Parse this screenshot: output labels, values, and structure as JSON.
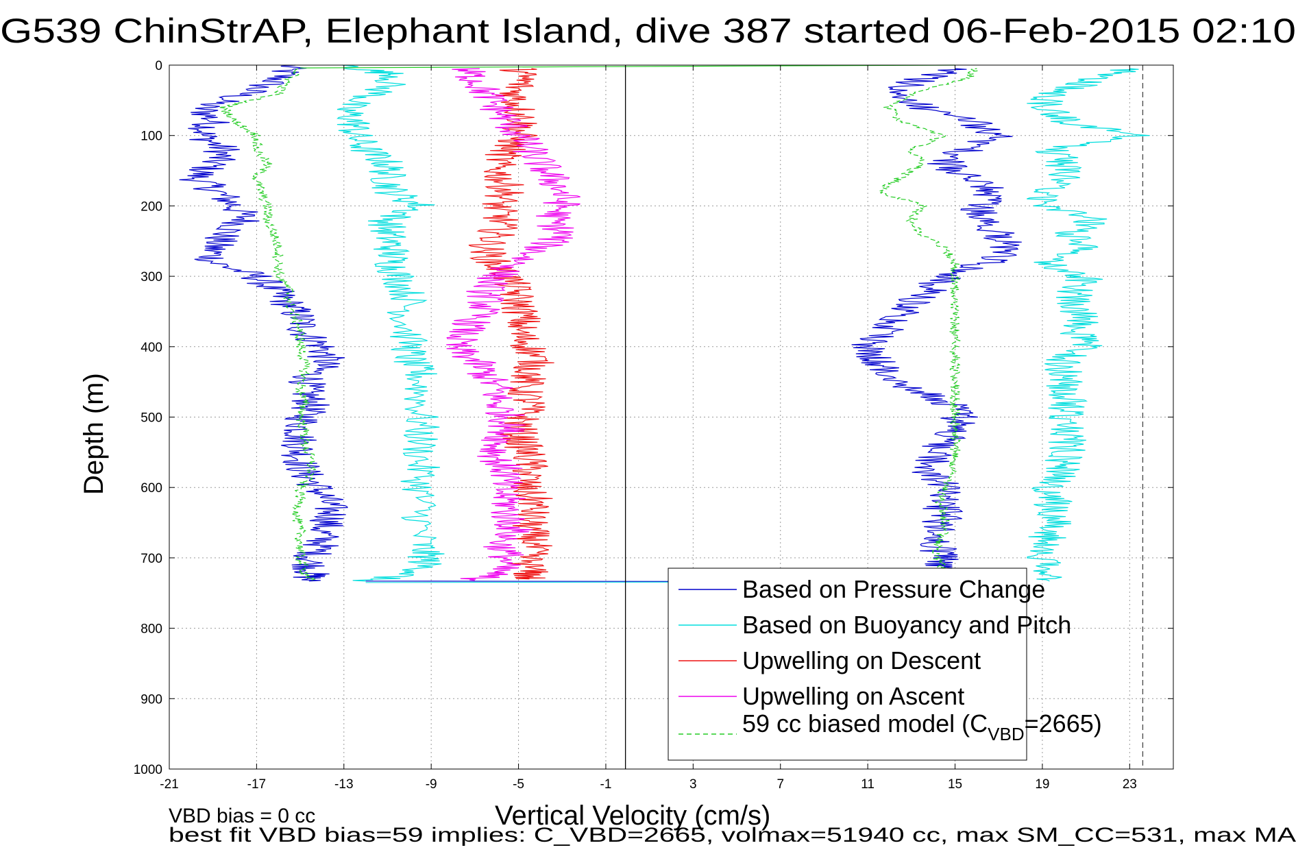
{
  "chart_data": {
    "type": "line",
    "title": "G539 ChinStrAP, Elephant Island, dive 387 started 06-Feb-2015 02:10",
    "xlabel": "Vertical Velocity (cm/s)",
    "ylabel": "Depth (m)",
    "xlim": [
      -21,
      25
    ],
    "ylim": [
      0,
      1000
    ],
    "y_reversed": true,
    "x_ticks": [
      -21,
      -17,
      -13,
      -9,
      -5,
      -1,
      3,
      7,
      11,
      15,
      19,
      23
    ],
    "y_ticks": [
      0,
      100,
      200,
      300,
      400,
      500,
      600,
      700,
      800,
      900,
      1000
    ],
    "grid": true,
    "legend_position": "bottom-right",
    "reference_lines": [
      {
        "x": -0.1,
        "style": "solid",
        "color": "#000000"
      },
      {
        "x": 23.6,
        "style": "dashed",
        "color": "#444444"
      }
    ],
    "series": [
      {
        "name": "Based on Pressure Change",
        "color": "#0000cc",
        "style": "solid",
        "segments": [
          {
            "depth": [
              0,
              20,
              40,
              60,
              80,
              100,
              120,
              140,
              160,
              180,
              200,
              220,
              240,
              260,
              280,
              300,
              320,
              340,
              360,
              380,
              400,
              420,
              440,
              460,
              480,
              500,
              520,
              540,
              560,
              580,
              600,
              620,
              640,
              660,
              680,
              700,
              720,
              733
            ],
            "velocity": [
              -15.5,
              -16.0,
              -17.5,
              -19.5,
              -19.0,
              -19.5,
              -18.5,
              -19.0,
              -19.8,
              -18.8,
              -18.0,
              -17.5,
              -18.5,
              -19.0,
              -19.0,
              -17.0,
              -16.2,
              -15.5,
              -15.0,
              -14.8,
              -14.0,
              -13.8,
              -14.5,
              -14.8,
              -14.5,
              -14.8,
              -15.0,
              -15.0,
              -15.0,
              -14.8,
              -14.2,
              -13.8,
              -13.5,
              -14.0,
              -14.0,
              -14.5,
              -14.5,
              -14.6
            ]
          },
          {
            "depth": [
              733,
              715,
              700,
              680,
              660,
              640,
              620,
              600,
              580,
              560,
              540,
              520,
              500,
              480,
              460,
              440,
              420,
              400,
              380,
              360,
              340,
              320,
              300,
              280,
              260,
              240,
              220,
              200,
              180,
              160,
              140,
              120,
              100,
              80,
              60,
              40,
              20,
              5
            ],
            "velocity": [
              14.0,
              14.2,
              14.5,
              14.0,
              14.2,
              14.5,
              14.3,
              14.5,
              13.8,
              14.0,
              14.2,
              15.0,
              15.2,
              14.8,
              13.2,
              11.8,
              11.5,
              11.0,
              11.8,
              12.5,
              13.0,
              13.8,
              14.5,
              16.5,
              17.5,
              17.0,
              16.5,
              16.0,
              16.8,
              15.5,
              14.5,
              15.5,
              17.0,
              15.8,
              13.5,
              12.0,
              13.5,
              15.0
            ]
          }
        ]
      },
      {
        "name": "Based on Buoyancy and Pitch",
        "color": "#00dddd",
        "style": "solid",
        "segments": [
          {
            "depth": [
              0,
              15,
              40,
              60,
              80,
              100,
              120,
              140,
              160,
              180,
              200,
              220,
              240,
              260,
              280,
              300,
              330,
              360,
              400,
              420,
              440,
              480,
              520,
              560,
              600,
              640,
              680,
              700,
              720,
              733
            ],
            "velocity": [
              -13.0,
              -10.5,
              -11.5,
              -13.0,
              -12.5,
              -12.5,
              -12.0,
              -11.0,
              -11.0,
              -10.8,
              -9.5,
              -11.0,
              -11.0,
              -10.8,
              -10.8,
              -10.5,
              -10.0,
              -10.2,
              -10.0,
              -10.0,
              -9.5,
              -9.5,
              -9.5,
              -9.5,
              -9.5,
              -9.5,
              -9.5,
              -9.2,
              -9.5,
              -12.0
            ]
          },
          {
            "depth": [
              733,
              720,
              700,
              680,
              660,
              640,
              620,
              600,
              580,
              560,
              540,
              520,
              500,
              480,
              460,
              440,
              420,
              400,
              380,
              360,
              340,
              320,
              300,
              280,
              260,
              240,
              220,
              200,
              180,
              160,
              140,
              120,
              100,
              80,
              60,
              40,
              20,
              5
            ],
            "velocity": [
              19.0,
              19.0,
              19.2,
              19.0,
              19.5,
              19.5,
              19.5,
              19.3,
              20.0,
              20.0,
              20.2,
              20.0,
              20.0,
              20.2,
              20.0,
              20.0,
              20.0,
              21.0,
              20.5,
              20.8,
              20.5,
              20.5,
              21.0,
              19.0,
              21.5,
              20.0,
              21.5,
              19.0,
              19.2,
              20.0,
              20.0,
              19.5,
              23.5,
              20.0,
              19.0,
              19.5,
              21.5,
              23.0
            ]
          }
        ]
      },
      {
        "name": "Upwelling on Descent",
        "color": "#ee1111",
        "style": "solid",
        "segments": [
          {
            "depth": [
              5,
              20,
              40,
              60,
              80,
              100,
              120,
              140,
              160,
              180,
              200,
              220,
              240,
              260,
              280,
              300,
              320,
              340,
              360,
              380,
              400,
              420,
              440,
              460,
              480,
              500,
              520,
              540,
              560,
              580,
              600,
              620,
              640,
              660,
              680,
              700,
              720,
              730
            ],
            "velocity": [
              -5.0,
              -4.8,
              -5.2,
              -5.0,
              -4.8,
              -5.0,
              -5.5,
              -6.0,
              -5.8,
              -5.5,
              -6.0,
              -5.8,
              -6.0,
              -6.5,
              -6.2,
              -5.5,
              -5.2,
              -5.0,
              -4.8,
              -5.0,
              -4.5,
              -4.2,
              -4.5,
              -4.8,
              -4.5,
              -4.8,
              -5.0,
              -4.8,
              -4.5,
              -4.5,
              -4.8,
              -4.2,
              -4.5,
              -4.5,
              -4.3,
              -4.6,
              -4.5,
              -4.5
            ]
          }
        ]
      },
      {
        "name": "Upwelling on Ascent",
        "color": "#ee00ee",
        "style": "solid",
        "segments": [
          {
            "depth": [
              5,
              20,
              40,
              60,
              80,
              100,
              120,
              140,
              160,
              180,
              200,
              220,
              240,
              260,
              280,
              300,
              320,
              340,
              360,
              380,
              400,
              420,
              440,
              460,
              480,
              500,
              520,
              540,
              560,
              580,
              600,
              620,
              640,
              660,
              680,
              700,
              720,
              732
            ],
            "velocity": [
              -7.5,
              -7.0,
              -6.5,
              -6.0,
              -5.5,
              -5.0,
              -4.5,
              -4.0,
              -3.5,
              -3.0,
              -3.0,
              -3.5,
              -3.0,
              -4.0,
              -5.0,
              -6.0,
              -6.5,
              -6.5,
              -7.0,
              -7.5,
              -8.0,
              -7.0,
              -6.5,
              -6.0,
              -6.0,
              -5.5,
              -5.5,
              -6.0,
              -6.0,
              -5.5,
              -5.8,
              -5.5,
              -5.5,
              -5.2,
              -5.8,
              -5.5,
              -6.0,
              -7.0
            ]
          }
        ]
      },
      {
        "name": "59 cc biased model (C_VBD=2665)",
        "color": "#22cc22",
        "style": "dashed",
        "segments": [
          {
            "depth": [
              5,
              20,
              40,
              60,
              80,
              100,
              120,
              140,
              160,
              180,
              200,
              220,
              240,
              260,
              280,
              300,
              320,
              340,
              360,
              380,
              400,
              420,
              440,
              460,
              480,
              500,
              520,
              540,
              560,
              580,
              600,
              620,
              640,
              660,
              680,
              700,
              720,
              732
            ],
            "velocity": [
              -15.0,
              -15.5,
              -16.0,
              -18.5,
              -18.0,
              -17.0,
              -17.0,
              -16.5,
              -17.0,
              -16.8,
              -16.5,
              -16.5,
              -16.2,
              -16.0,
              -16.0,
              -16.0,
              -15.5,
              -15.5,
              -15.2,
              -15.0,
              -15.0,
              -14.8,
              -14.8,
              -15.0,
              -14.8,
              -15.0,
              -14.8,
              -14.8,
              -14.5,
              -14.5,
              -15.0,
              -15.0,
              -15.2,
              -15.0,
              -15.0,
              -15.0,
              -14.8,
              -14.5
            ]
          },
          {
            "depth": [
              732,
              720,
              700,
              680,
              660,
              640,
              620,
              600,
              580,
              560,
              540,
              520,
              500,
              480,
              460,
              440,
              420,
              400,
              380,
              360,
              340,
              320,
              300,
              280,
              260,
              240,
              220,
              200,
              180,
              160,
              140,
              120,
              100,
              80,
              60,
              40,
              20,
              5
            ],
            "velocity": [
              14.5,
              14.5,
              14.2,
              14.2,
              14.5,
              14.5,
              14.3,
              14.5,
              14.8,
              15.0,
              15.0,
              15.0,
              15.0,
              15.0,
              15.0,
              15.0,
              15.0,
              15.0,
              15.0,
              15.0,
              15.0,
              15.0,
              15.0,
              15.0,
              14.5,
              13.5,
              13.0,
              13.5,
              11.5,
              12.5,
              13.5,
              13.0,
              14.5,
              12.5,
              12.0,
              13.0,
              15.5,
              16.0
            ]
          }
        ]
      }
    ]
  },
  "legend": {
    "entries": [
      {
        "label": "Based on Pressure Change",
        "color": "#0000cc",
        "style": "solid"
      },
      {
        "label": "Based on Buoyancy and Pitch",
        "color": "#00dddd",
        "style": "solid"
      },
      {
        "label": "Upwelling on Descent",
        "color": "#ee1111",
        "style": "solid"
      },
      {
        "label": "Upwelling on Ascent",
        "color": "#ee00ee",
        "style": "solid"
      }
    ],
    "model_entry": {
      "text_before_sub": "59 cc biased model (C",
      "subscript": "VBD",
      "text_after_sub": "=2665)",
      "color": "#22cc22",
      "style": "dashed"
    }
  },
  "footer": {
    "line1": "VBD bias = 0 cc",
    "line2": "best fit VBD bias=59 implies: C_VBD=2665, volmax=51940 cc, max SM_CC=531, max MA"
  }
}
